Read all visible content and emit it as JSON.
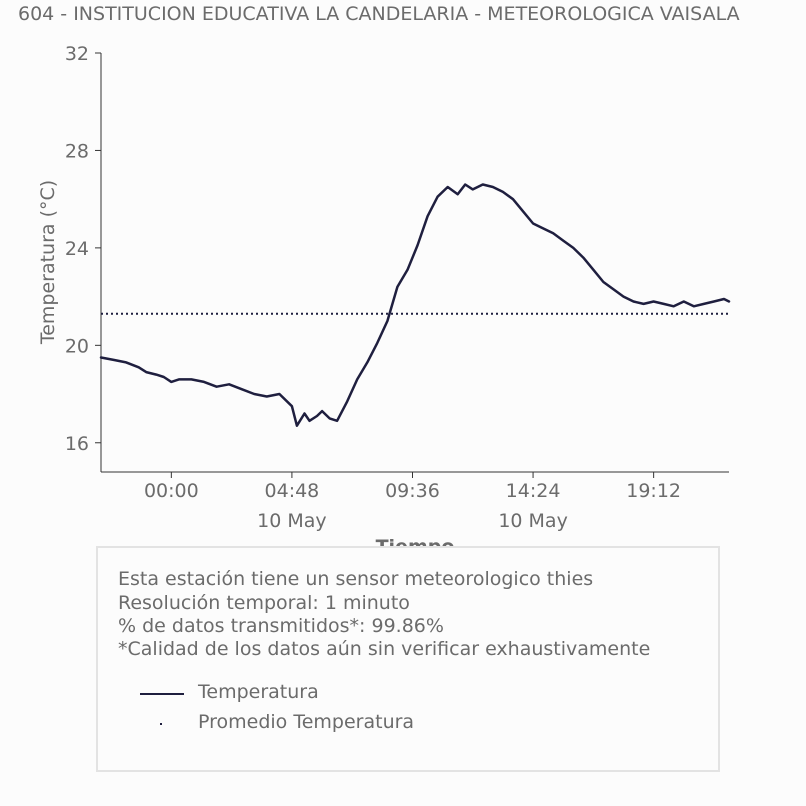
{
  "title": "604 - INSTITUCION EDUCATIVA LA CANDELARIA - METEOROLOGICA VAISALA",
  "colors": {
    "series": "#1f1f3f",
    "text": "#6b6b6b",
    "background": "#fcfcfc",
    "box_border": "#e3e3e3"
  },
  "chart_data": {
    "type": "line",
    "title": "604 - INSTITUCION EDUCATIVA LA CANDELARIA - METEOROLOGICA VAISALA",
    "xlabel": "Tiempo",
    "ylabel": "Temperatura (°C)",
    "ylim": [
      14.8,
      32
    ],
    "yticks": [
      16,
      20,
      24,
      28,
      32
    ],
    "xlim": [
      -2.8,
      22.2
    ],
    "xticks": [
      {
        "value": 0.0,
        "label": "00:00",
        "sublabel": ""
      },
      {
        "value": 4.8,
        "label": "04:48",
        "sublabel": "10 May"
      },
      {
        "value": 9.6,
        "label": "09:36",
        "sublabel": ""
      },
      {
        "value": 14.4,
        "label": "14:24",
        "sublabel": "10 May"
      },
      {
        "value": 19.2,
        "label": "19:12",
        "sublabel": ""
      }
    ],
    "grid": false,
    "series": [
      {
        "name": "Temperatura",
        "style": "solid",
        "x": [
          -2.8,
          -2.3,
          -1.8,
          -1.3,
          -1.0,
          -0.6,
          -0.3,
          0.0,
          0.3,
          0.8,
          1.3,
          1.8,
          2.3,
          2.8,
          3.3,
          3.8,
          4.3,
          4.8,
          5.0,
          5.3,
          5.5,
          5.8,
          6.0,
          6.3,
          6.6,
          7.0,
          7.4,
          7.8,
          8.2,
          8.6,
          9.0,
          9.4,
          9.8,
          10.2,
          10.6,
          11.0,
          11.4,
          11.7,
          12.0,
          12.4,
          12.8,
          13.2,
          13.6,
          14.0,
          14.4,
          14.8,
          15.2,
          15.6,
          16.0,
          16.4,
          16.8,
          17.2,
          17.6,
          18.0,
          18.4,
          18.8,
          19.2,
          19.6,
          20.0,
          20.4,
          20.8,
          21.2,
          21.6,
          22.0,
          22.2
        ],
        "y": [
          19.5,
          19.4,
          19.3,
          19.1,
          18.9,
          18.8,
          18.7,
          18.5,
          18.6,
          18.6,
          18.5,
          18.3,
          18.4,
          18.2,
          18.0,
          17.9,
          18.0,
          17.5,
          16.7,
          17.2,
          16.9,
          17.1,
          17.3,
          17.0,
          16.9,
          17.7,
          18.6,
          19.3,
          20.1,
          21.0,
          22.4,
          23.1,
          24.1,
          25.3,
          26.1,
          26.5,
          26.2,
          26.6,
          26.4,
          26.6,
          26.5,
          26.3,
          26.0,
          25.5,
          25.0,
          24.8,
          24.6,
          24.3,
          24.0,
          23.6,
          23.1,
          22.6,
          22.3,
          22.0,
          21.8,
          21.7,
          21.8,
          21.7,
          21.6,
          21.8,
          21.6,
          21.7,
          21.8,
          21.9,
          21.8
        ]
      },
      {
        "name": "Promedio Temperatura",
        "style": "dotted",
        "x": [
          -2.8,
          22.2
        ],
        "y": [
          21.3,
          21.3
        ]
      }
    ]
  },
  "info": {
    "line1": "Esta estación tiene un sensor meteorologico thies",
    "line2": "Resolución temporal: 1 minuto",
    "line3": "% de datos transmitidos*: 99.86%",
    "line4": "*Calidad de los datos aún sin verificar exhaustivamente"
  },
  "legend": {
    "series1": "Temperatura",
    "series2": "Promedio Temperatura"
  }
}
